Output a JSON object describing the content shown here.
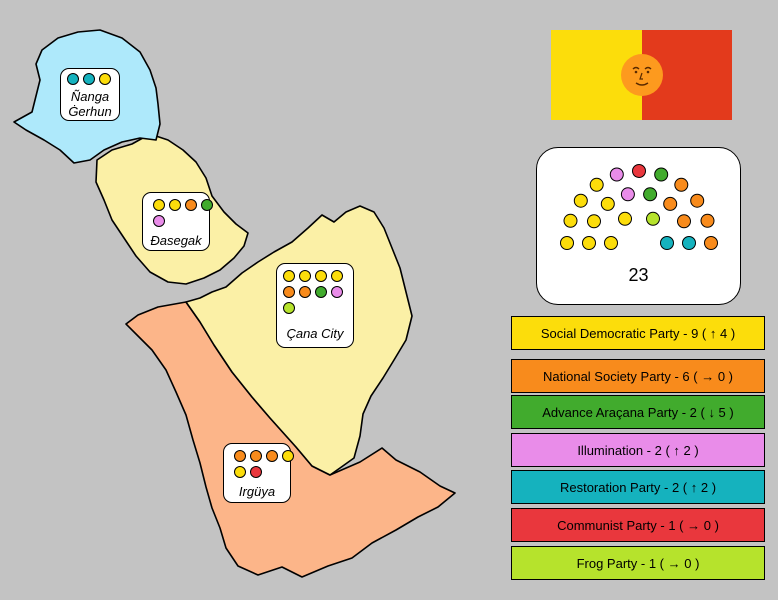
{
  "regions": [
    {
      "name": "Ñanga Ġerhun",
      "label_lines": [
        "Ñanga",
        "Ġerhun"
      ],
      "fill": "#aee9fb",
      "seats": [
        "Restoration Party",
        "Restoration Party",
        "Social Democratic Party"
      ]
    },
    {
      "name": "Ɖasegak",
      "label_lines": [
        "Ɖasegak"
      ],
      "fill": "#fbf0a6",
      "seats": [
        "Social Democratic Party",
        "Social Democratic Party",
        "National Society Party",
        "Advance Araçana Party",
        "Illumination"
      ]
    },
    {
      "name": "Çana City",
      "label_lines": [
        "Çana City"
      ],
      "fill": "#fbf0a6",
      "seats": [
        "Social Democratic Party",
        "Social Democratic Party",
        "Social Democratic Party",
        "Social Democratic Party",
        "National Society Party",
        "National Society Party",
        "Advance Araçana Party",
        "Illumination",
        "Frog Party"
      ]
    },
    {
      "name": "Irgüya",
      "label_lines": [
        "Irgüya"
      ],
      "fill": "#fcb589",
      "seats": [
        "National Society Party",
        "National Society Party",
        "National Society Party",
        "Social Democratic Party",
        "Social Democratic Party",
        "Communist Party"
      ]
    }
  ],
  "flag": {
    "left_color": "#fcdd0b",
    "right_color": "#e33a1c",
    "emblem_color": "#fd9a1e",
    "emblem_icon": "sun-face-icon"
  },
  "parliament": {
    "total_seats": "23",
    "seat_order": [
      "Social Democratic Party",
      "Social Democratic Party",
      "Social Democratic Party",
      "Social Democratic Party",
      "Social Democratic Party",
      "Social Democratic Party",
      "Social Democratic Party",
      "Social Democratic Party",
      "Social Democratic Party",
      "Illumination",
      "Illumination",
      "Communist Party",
      "Advance Araçana Party",
      "Advance Araçana Party",
      "Frog Party",
      "National Society Party",
      "National Society Party",
      "National Society Party",
      "National Society Party",
      "National Society Party",
      "National Society Party",
      "Restoration Party",
      "Restoration Party"
    ]
  },
  "parties": [
    {
      "name": "Social Democratic Party",
      "label": "Social Democratic Party - 9 ( ↑ 4 )",
      "seats": 9,
      "change": "↑ 4",
      "color": "#fcdd0b"
    },
    {
      "name": "National Society Party",
      "label": "National Society Party - 6 ( → 0 )",
      "seats": 6,
      "change": "→ 0",
      "color": "#f88b1c"
    },
    {
      "name": "Advance Araçana Party",
      "label": "Advance Araçana Party - 2 ( ↓ 5 )",
      "seats": 2,
      "change": "↓ 5",
      "color": "#41ab2d"
    },
    {
      "name": "Illumination",
      "label": "Illumination - 2 ( ↑ 2 )",
      "seats": 2,
      "change": "↑ 2",
      "color": "#e98ce9"
    },
    {
      "name": "Restoration Party",
      "label": "Restoration Party - 2 ( ↑ 2 )",
      "seats": 2,
      "change": "↑ 2",
      "color": "#15b2be"
    },
    {
      "name": "Communist Party",
      "label": "Communist Party - 1 ( → 0 )",
      "seats": 1,
      "change": "→ 0",
      "color": "#e9373d"
    },
    {
      "name": "Frog Party",
      "label": "Frog Party - 1 ( → 0 )",
      "seats": 1,
      "change": "→ 0",
      "color": "#b6e32c"
    }
  ]
}
